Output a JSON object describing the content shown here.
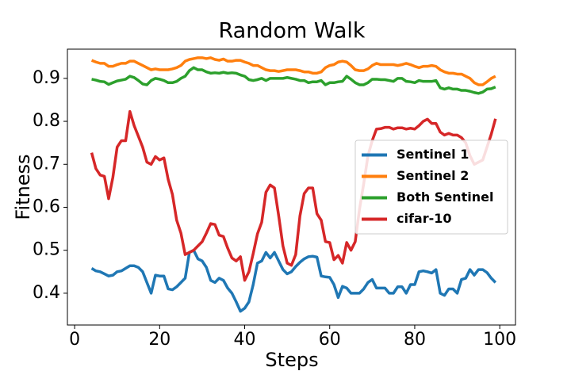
{
  "chart_data": {
    "type": "line",
    "title": "Random Walk",
    "x_label": "Steps",
    "y_label": "Fitness",
    "x": [
      4,
      5,
      6,
      7,
      8,
      9,
      10,
      11,
      12,
      13,
      14,
      15,
      16,
      17,
      18,
      19,
      20,
      21,
      22,
      23,
      24,
      25,
      26,
      27,
      28,
      29,
      30,
      31,
      32,
      33,
      34,
      35,
      36,
      37,
      38,
      39,
      40,
      41,
      42,
      43,
      44,
      45,
      46,
      47,
      48,
      49,
      50,
      51,
      52,
      53,
      54,
      55,
      56,
      57,
      58,
      59,
      60,
      61,
      62,
      63,
      64,
      65,
      66,
      67,
      68,
      69,
      70,
      71,
      72,
      73,
      74,
      75,
      76,
      77,
      78,
      79,
      80,
      81,
      82,
      83,
      84,
      85,
      86,
      87,
      88,
      89,
      90,
      91,
      92,
      93,
      94,
      95,
      96,
      97,
      98,
      99
    ],
    "series": [
      {
        "name": "Sentinel 1",
        "color": "#1f77b4",
        "values": [
          0.458,
          0.452,
          0.45,
          0.445,
          0.44,
          0.442,
          0.45,
          0.452,
          0.458,
          0.464,
          0.464,
          0.46,
          0.45,
          0.425,
          0.4,
          0.442,
          0.44,
          0.44,
          0.41,
          0.408,
          0.415,
          0.425,
          0.435,
          0.495,
          0.5,
          0.48,
          0.475,
          0.46,
          0.43,
          0.425,
          0.435,
          0.43,
          0.412,
          0.4,
          0.38,
          0.358,
          0.365,
          0.38,
          0.42,
          0.47,
          0.475,
          0.495,
          0.482,
          0.495,
          0.475,
          0.455,
          0.445,
          0.45,
          0.462,
          0.472,
          0.48,
          0.485,
          0.486,
          0.484,
          0.44,
          0.438,
          0.437,
          0.42,
          0.39,
          0.416,
          0.412,
          0.4,
          0.4,
          0.4,
          0.41,
          0.425,
          0.432,
          0.412,
          0.412,
          0.412,
          0.4,
          0.4,
          0.415,
          0.415,
          0.4,
          0.42,
          0.42,
          0.45,
          0.452,
          0.45,
          0.447,
          0.455,
          0.4,
          0.395,
          0.41,
          0.41,
          0.4,
          0.432,
          0.435,
          0.455,
          0.442,
          0.455,
          0.455,
          0.448,
          0.435,
          0.425
        ]
      },
      {
        "name": "Sentinel 2",
        "color": "#ff7f0e",
        "values": [
          0.942,
          0.938,
          0.935,
          0.935,
          0.928,
          0.928,
          0.932,
          0.935,
          0.935,
          0.94,
          0.94,
          0.935,
          0.93,
          0.925,
          0.92,
          0.922,
          0.92,
          0.92,
          0.92,
          0.922,
          0.925,
          0.93,
          0.94,
          0.944,
          0.946,
          0.948,
          0.948,
          0.946,
          0.948,
          0.944,
          0.942,
          0.945,
          0.94,
          0.94,
          0.942,
          0.942,
          0.938,
          0.935,
          0.93,
          0.93,
          0.925,
          0.92,
          0.918,
          0.918,
          0.916,
          0.918,
          0.92,
          0.92,
          0.92,
          0.918,
          0.915,
          0.915,
          0.912,
          0.912,
          0.915,
          0.925,
          0.93,
          0.932,
          0.938,
          0.94,
          0.938,
          0.93,
          0.92,
          0.918,
          0.918,
          0.922,
          0.93,
          0.935,
          0.932,
          0.932,
          0.932,
          0.932,
          0.93,
          0.932,
          0.935,
          0.932,
          0.928,
          0.925,
          0.928,
          0.928,
          0.93,
          0.928,
          0.92,
          0.915,
          0.912,
          0.912,
          0.91,
          0.91,
          0.905,
          0.9,
          0.89,
          0.885,
          0.885,
          0.892,
          0.9,
          0.905
        ]
      },
      {
        "name": "Both Sentinel",
        "color": "#2ca02c",
        "values": [
          0.898,
          0.896,
          0.893,
          0.892,
          0.886,
          0.89,
          0.894,
          0.896,
          0.898,
          0.905,
          0.902,
          0.895,
          0.887,
          0.885,
          0.895,
          0.9,
          0.898,
          0.895,
          0.89,
          0.89,
          0.893,
          0.9,
          0.905,
          0.918,
          0.925,
          0.92,
          0.92,
          0.915,
          0.912,
          0.913,
          0.912,
          0.914,
          0.912,
          0.913,
          0.912,
          0.908,
          0.905,
          0.897,
          0.895,
          0.897,
          0.9,
          0.895,
          0.9,
          0.9,
          0.9,
          0.9,
          0.902,
          0.9,
          0.898,
          0.895,
          0.895,
          0.89,
          0.892,
          0.892,
          0.895,
          0.885,
          0.89,
          0.89,
          0.892,
          0.893,
          0.905,
          0.898,
          0.89,
          0.885,
          0.885,
          0.89,
          0.898,
          0.898,
          0.897,
          0.897,
          0.895,
          0.893,
          0.9,
          0.9,
          0.893,
          0.892,
          0.89,
          0.895,
          0.893,
          0.893,
          0.893,
          0.895,
          0.878,
          0.875,
          0.878,
          0.875,
          0.875,
          0.872,
          0.872,
          0.87,
          0.867,
          0.865,
          0.868,
          0.875,
          0.876,
          0.88
        ]
      },
      {
        "name": "cifar-10",
        "color": "#d62728",
        "values": [
          0.727,
          0.69,
          0.675,
          0.672,
          0.62,
          0.67,
          0.74,
          0.755,
          0.755,
          0.823,
          0.79,
          0.765,
          0.74,
          0.705,
          0.7,
          0.718,
          0.71,
          0.715,
          0.665,
          0.63,
          0.57,
          0.54,
          0.49,
          0.495,
          0.5,
          0.51,
          0.52,
          0.54,
          0.562,
          0.56,
          0.535,
          0.532,
          0.505,
          0.482,
          0.475,
          0.485,
          0.43,
          0.45,
          0.492,
          0.538,
          0.565,
          0.635,
          0.652,
          0.645,
          0.58,
          0.51,
          0.47,
          0.465,
          0.49,
          0.58,
          0.632,
          0.645,
          0.645,
          0.585,
          0.57,
          0.52,
          0.518,
          0.478,
          0.488,
          0.47,
          0.518,
          0.5,
          0.52,
          0.595,
          0.655,
          0.72,
          0.755,
          0.782,
          0.783,
          0.786,
          0.786,
          0.782,
          0.785,
          0.785,
          0.782,
          0.784,
          0.782,
          0.79,
          0.8,
          0.805,
          0.795,
          0.795,
          0.775,
          0.768,
          0.772,
          0.768,
          0.768,
          0.762,
          0.75,
          0.72,
          0.7,
          0.705,
          0.71,
          0.74,
          0.77,
          0.806
        ]
      }
    ],
    "xlim": [
      -1.7,
      103.7
    ],
    "ylim": [
      0.326,
      0.968
    ],
    "xticks": [
      0,
      20,
      40,
      60,
      80,
      100
    ],
    "yticks": [
      0.4,
      0.5,
      0.6,
      0.7,
      0.8,
      0.9
    ],
    "grid": false,
    "legend": "center right"
  }
}
